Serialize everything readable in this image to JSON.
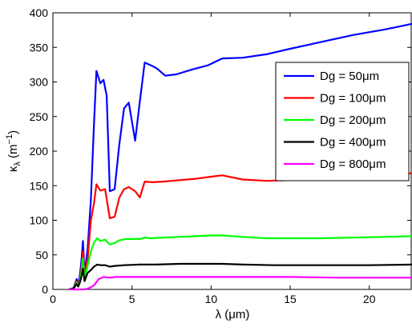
{
  "chart_data": {
    "type": "line",
    "xlabel": "λ (μm)",
    "ylabel": "κλ (m⁻¹)",
    "ylabel_parts": {
      "kappa": "κ",
      "sub": "λ",
      "open": " (m",
      "sup": "−1",
      "close": ")"
    },
    "xlim": [
      0,
      22.7
    ],
    "ylim": [
      0,
      400
    ],
    "xticks": [
      0,
      5,
      10,
      15,
      20
    ],
    "yticks": [
      0,
      50,
      100,
      150,
      200,
      250,
      300,
      350,
      400
    ],
    "grid": false,
    "legend_position": "top-right",
    "series": [
      {
        "name": "Dg = 50μm",
        "color": "#0000ff",
        "x": [
          1.0,
          1.3,
          1.5,
          1.6,
          1.7,
          1.8,
          1.9,
          2.0,
          2.1,
          2.2,
          2.4,
          2.6,
          2.75,
          3.0,
          3.2,
          3.4,
          3.6,
          3.9,
          4.2,
          4.5,
          4.8,
          5.2,
          5.5,
          5.8,
          6.3,
          6.6,
          7.1,
          7.8,
          8.8,
          9.8,
          10.7,
          12.0,
          13.5,
          15.0,
          17.0,
          19.0,
          21.0,
          22.7
        ],
        "y": [
          0,
          2,
          15,
          8,
          20,
          40,
          70,
          25,
          40,
          60,
          130,
          240,
          316,
          298,
          303,
          280,
          142,
          145,
          210,
          262,
          270,
          215,
          272,
          328,
          323,
          319,
          309,
          311,
          318,
          324,
          334,
          335,
          340,
          348,
          358,
          368,
          376,
          384
        ]
      },
      {
        "name": "Dg = 100μm",
        "color": "#ff0000",
        "x": [
          1.0,
          1.3,
          1.5,
          1.6,
          1.7,
          1.8,
          1.9,
          2.0,
          2.1,
          2.2,
          2.4,
          2.6,
          2.75,
          3.0,
          3.3,
          3.6,
          3.9,
          4.2,
          4.5,
          4.8,
          5.2,
          5.5,
          5.8,
          6.3,
          7.0,
          8.0,
          9.0,
          10.0,
          10.7,
          12.0,
          13.5,
          15.0,
          17.0,
          19.0,
          21.0,
          22.7
        ],
        "y": [
          0,
          1,
          12,
          6,
          15,
          30,
          55,
          20,
          30,
          45,
          100,
          125,
          152,
          143,
          145,
          103,
          105,
          133,
          145,
          148,
          142,
          133,
          156,
          155,
          156,
          158,
          160,
          163,
          165,
          159,
          157,
          158,
          160,
          162,
          165,
          168
        ]
      },
      {
        "name": "Dg = 200μm",
        "color": "#00ff00",
        "x": [
          1.0,
          1.3,
          1.5,
          1.6,
          1.7,
          1.8,
          1.9,
          2.0,
          2.1,
          2.2,
          2.4,
          2.6,
          2.8,
          3.0,
          3.3,
          3.6,
          3.9,
          4.2,
          4.6,
          5.0,
          5.5,
          5.8,
          6.2,
          7.0,
          8.0,
          9.0,
          10.0,
          10.7,
          12.0,
          13.5,
          15.0,
          17.0,
          19.0,
          21.0,
          22.7
        ],
        "y": [
          0,
          1,
          10,
          5,
          12,
          25,
          45,
          15,
          25,
          35,
          55,
          68,
          74,
          70,
          72,
          65,
          67,
          71,
          73,
          73,
          73,
          75,
          74,
          75,
          76,
          77,
          78,
          78,
          76,
          74,
          74,
          74,
          75,
          76,
          77
        ]
      },
      {
        "name": "Dg = 400μm",
        "color": "#000000",
        "x": [
          1.0,
          1.3,
          1.5,
          1.6,
          1.7,
          1.8,
          1.9,
          2.0,
          2.1,
          2.2,
          2.4,
          2.6,
          2.8,
          3.0,
          3.3,
          3.6,
          3.9,
          4.5,
          5.5,
          6.5,
          8.0,
          10.0,
          10.7,
          12.0,
          14.0,
          16.0,
          18.0,
          20.0,
          22.7
        ],
        "y": [
          0,
          1,
          8,
          4,
          10,
          18,
          30,
          12,
          18,
          24,
          28,
          33,
          36,
          35,
          35,
          33,
          34,
          35,
          36,
          36,
          37,
          37,
          37,
          36,
          35,
          35,
          35,
          35,
          36
        ]
      },
      {
        "name": "Dg = 800μm",
        "color": "#ff00ff",
        "x": [
          1.0,
          1.5,
          2.0,
          2.3,
          2.6,
          2.9,
          3.2,
          3.6,
          4.0,
          5.0,
          6.0,
          8.0,
          10.0,
          12.0,
          15.0,
          18.0,
          20.0,
          22.7
        ],
        "y": [
          0,
          0,
          0,
          2,
          6,
          15,
          18,
          17,
          18,
          18,
          18,
          18,
          18,
          18,
          18,
          17,
          17,
          17
        ]
      }
    ]
  }
}
